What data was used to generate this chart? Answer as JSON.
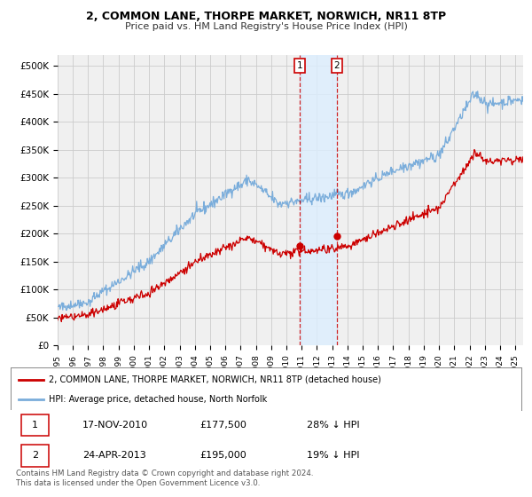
{
  "title": "2, COMMON LANE, THORPE MARKET, NORWICH, NR11 8TP",
  "subtitle": "Price paid vs. HM Land Registry's House Price Index (HPI)",
  "ylabel_ticks": [
    "£0",
    "£50K",
    "£100K",
    "£150K",
    "£200K",
    "£250K",
    "£300K",
    "£350K",
    "£400K",
    "£450K",
    "£500K"
  ],
  "ytick_vals": [
    0,
    50000,
    100000,
    150000,
    200000,
    250000,
    300000,
    350000,
    400000,
    450000,
    500000
  ],
  "ylim": [
    0,
    520000
  ],
  "xlim_start": 1995.0,
  "xlim_end": 2025.5,
  "line1_color": "#cc0000",
  "line2_color": "#7aaddb",
  "transaction1_x": 2010.88,
  "transaction1_y": 177500,
  "transaction2_x": 2013.31,
  "transaction2_y": 195000,
  "legend_line1": "2, COMMON LANE, THORPE MARKET, NORWICH, NR11 8TP (detached house)",
  "legend_line2": "HPI: Average price, detached house, North Norfolk",
  "table_row1": [
    "1",
    "17-NOV-2010",
    "£177,500",
    "28% ↓ HPI"
  ],
  "table_row2": [
    "2",
    "24-APR-2013",
    "£195,000",
    "19% ↓ HPI"
  ],
  "footnote": "Contains HM Land Registry data © Crown copyright and database right 2024.\nThis data is licensed under the Open Government Licence v3.0.",
  "background_color": "#ffffff",
  "plot_bg_color": "#f0f0f0",
  "grid_color": "#cccccc",
  "shade_color": "#ddeeff"
}
